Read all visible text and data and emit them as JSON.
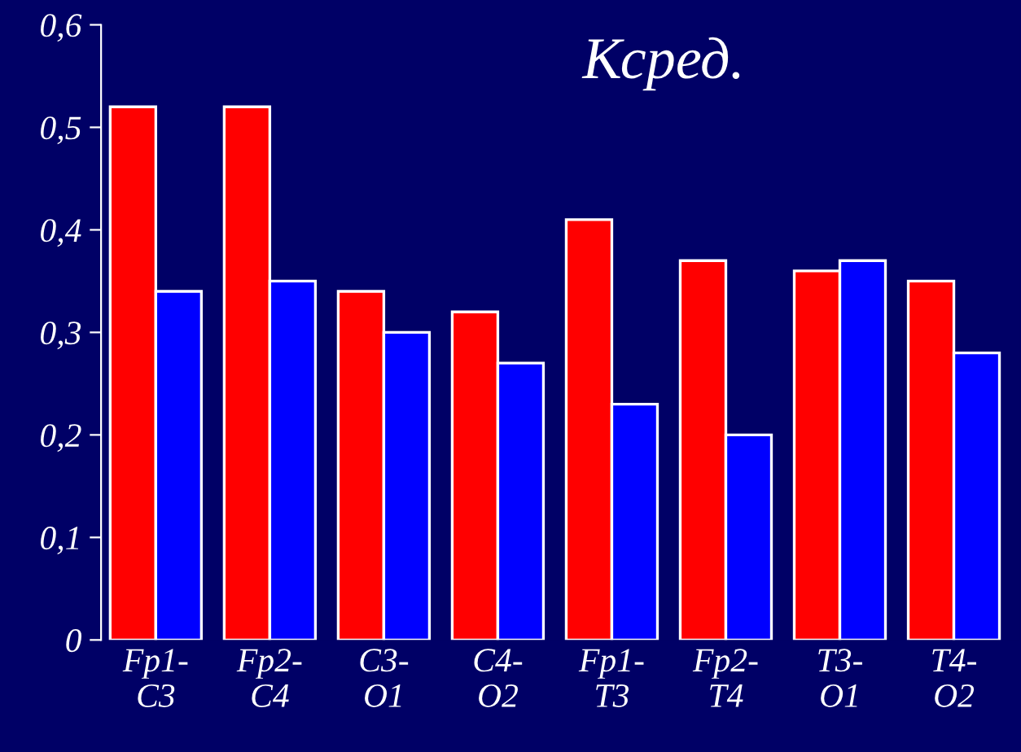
{
  "chart_data": {
    "type": "bar",
    "title": "Ксред.",
    "categories": [
      "Fp1-\nC3",
      "Fp2-\nC4",
      "C3-\nO1",
      "C4-\nO2",
      "Fp1-\nT3",
      "Fp2-\nT4",
      "T3-\nO1",
      "T4-\nO2"
    ],
    "series": [
      {
        "color": "#ff0000",
        "values": [
          0.52,
          0.52,
          0.34,
          0.32,
          0.41,
          0.37,
          0.36,
          0.35
        ]
      },
      {
        "color": "#0000ff",
        "values": [
          0.34,
          0.35,
          0.3,
          0.27,
          0.23,
          0.2,
          0.37,
          0.28
        ]
      }
    ],
    "ylim": [
      0,
      0.6
    ],
    "yticks": [
      {
        "value": 0,
        "label": "0"
      },
      {
        "value": 0.1,
        "label": "0,1"
      },
      {
        "value": 0.2,
        "label": "0,2"
      },
      {
        "value": 0.3,
        "label": "0,3"
      },
      {
        "value": 0.4,
        "label": "0,4"
      },
      {
        "value": 0.5,
        "label": "0,5"
      },
      {
        "value": 0.6,
        "label": "0,6"
      }
    ],
    "grid": false
  }
}
